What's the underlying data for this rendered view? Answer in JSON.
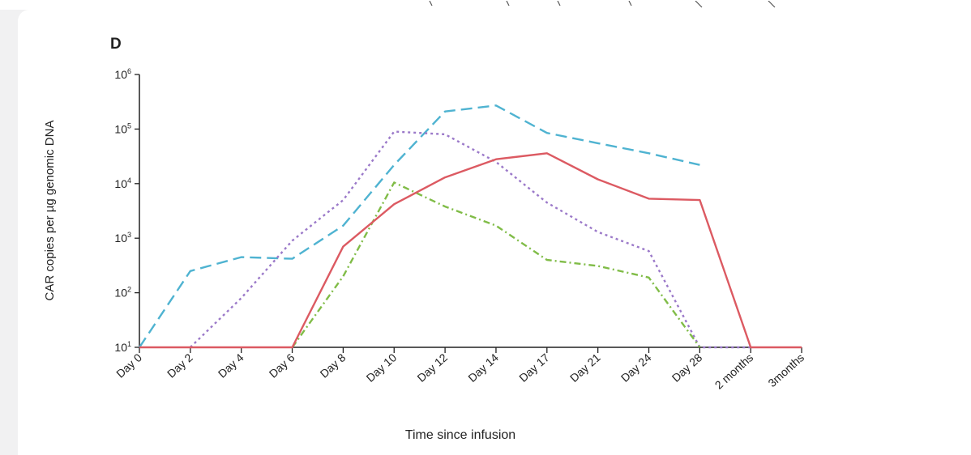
{
  "panel_label": "D",
  "chart_data": {
    "type": "line",
    "xlabel": "Time since infusion",
    "ylabel": "CAR copies per µg genomic DNA",
    "y_scale": "log",
    "ylim": [
      10,
      1000000
    ],
    "y_ticks": [
      {
        "value": 10,
        "base": "10",
        "exp": "1"
      },
      {
        "value": 100,
        "base": "10",
        "exp": "2"
      },
      {
        "value": 1000,
        "base": "10",
        "exp": "3"
      },
      {
        "value": 10000,
        "base": "10",
        "exp": "4"
      },
      {
        "value": 100000,
        "base": "10",
        "exp": "5"
      },
      {
        "value": 1000000,
        "base": "10",
        "exp": "6"
      }
    ],
    "categories": [
      "Day 0",
      "Day 2",
      "Day 4",
      "Day 6",
      "Day 8",
      "Day 10",
      "Day 12",
      "Day 14",
      "Day 17",
      "Day 21",
      "Day 24",
      "Day 28",
      "2 months",
      "3months"
    ],
    "grid": false,
    "legend": "none",
    "series": [
      {
        "color": "#4fb3d1",
        "dash": "14 7",
        "values": [
          10,
          250,
          450,
          420,
          1700,
          22000,
          210000,
          270000,
          85000,
          55000,
          36000,
          22000,
          null,
          null
        ]
      },
      {
        "color": "#9b79c9",
        "dash": "3 4",
        "values": [
          null,
          10,
          80,
          900,
          5000,
          90000,
          80000,
          25000,
          4500,
          1300,
          580,
          10,
          10,
          null
        ]
      },
      {
        "color": "#80bc47",
        "dash": "8 4 2 4",
        "values": [
          null,
          null,
          null,
          10,
          200,
          10500,
          3800,
          1700,
          400,
          310,
          190,
          10,
          null,
          null
        ]
      },
      {
        "color": "#dc5a62",
        "dash": "",
        "values": [
          10,
          10,
          10,
          10,
          700,
          4200,
          13000,
          28000,
          36000,
          12000,
          5300,
          5000,
          10,
          10
        ]
      }
    ]
  }
}
